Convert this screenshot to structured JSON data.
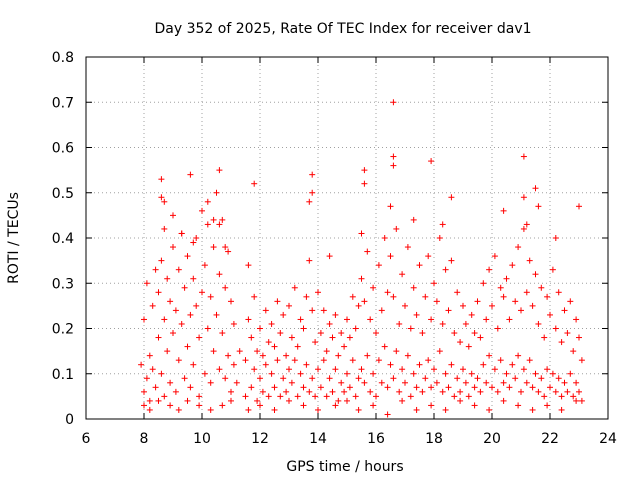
{
  "chart_data": {
    "type": "scatter",
    "title": "Day 352 of 2025, Rate Of TEC Index for receiver dav1",
    "xlabel": "GPS time / hours",
    "ylabel": "ROTI / TECUs",
    "xlim": [
      6,
      24
    ],
    "ylim": [
      0,
      0.8
    ],
    "xticks": [
      6,
      8,
      10,
      12,
      14,
      16,
      18,
      20,
      22,
      24
    ],
    "xtick_labels": [
      "6",
      "8",
      "10",
      "12",
      "14",
      "16",
      "18",
      "20",
      "22",
      "24"
    ],
    "yticks": [
      0,
      0.1,
      0.2,
      0.3,
      0.4,
      0.5,
      0.6,
      0.7,
      0.8
    ],
    "ytick_labels": [
      "0",
      "0.1",
      "0.2",
      "0.3",
      "0.4",
      "0.5",
      "0.6",
      "0.7",
      "0.8"
    ],
    "grid": true,
    "marker": "+",
    "series": [
      {
        "name": "dav1",
        "color": "#ff0000",
        "x": [
          7.9,
          8.0,
          8.0,
          8.1,
          8.1,
          8.2,
          8.2,
          8.3,
          8.3,
          8.4,
          8.4,
          8.5,
          8.5,
          8.6,
          8.6,
          8.7,
          8.7,
          8.7,
          8.8,
          8.8,
          8.9,
          8.9,
          9.0,
          9.0,
          9.1,
          9.1,
          9.2,
          9.2,
          9.3,
          9.3,
          9.4,
          9.4,
          9.5,
          9.5,
          9.6,
          9.6,
          9.7,
          9.7,
          9.8,
          9.8,
          9.9,
          9.9,
          10.0,
          10.0,
          10.1,
          10.1,
          10.2,
          10.2,
          10.3,
          10.3,
          10.4,
          10.4,
          10.5,
          10.5,
          10.6,
          10.6,
          10.7,
          10.7,
          10.8,
          10.8,
          10.9,
          10.9,
          11.0,
          11.0,
          11.1,
          11.1,
          11.2,
          11.3,
          11.5,
          11.5,
          11.6,
          11.6,
          11.7,
          11.7,
          11.8,
          11.8,
          11.9,
          11.9,
          12.0,
          12.0,
          12.1,
          12.1,
          12.2,
          12.2,
          12.3,
          12.3,
          12.4,
          12.4,
          12.5,
          12.5,
          12.6,
          12.6,
          12.7,
          12.7,
          12.8,
          12.8,
          12.9,
          12.9,
          13.0,
          13.0,
          13.1,
          13.1,
          13.2,
          13.2,
          13.3,
          13.3,
          13.4,
          13.4,
          13.5,
          13.5,
          13.6,
          13.6,
          13.7,
          13.7,
          13.8,
          13.8,
          13.9,
          13.9,
          14.0,
          14.0,
          14.1,
          14.1,
          14.2,
          14.2,
          14.3,
          14.3,
          14.4,
          14.4,
          14.5,
          14.5,
          14.6,
          14.6,
          14.7,
          14.7,
          14.8,
          14.8,
          14.9,
          14.9,
          15.0,
          15.0,
          15.1,
          15.1,
          15.2,
          15.2,
          15.3,
          15.3,
          15.4,
          15.4,
          15.5,
          15.5,
          15.6,
          15.6,
          15.7,
          15.7,
          15.8,
          15.8,
          15.9,
          15.9,
          16.0,
          16.0,
          16.1,
          16.1,
          16.2,
          16.2,
          16.3,
          16.3,
          16.4,
          16.4,
          16.5,
          16.5,
          16.6,
          16.6,
          16.7,
          16.7,
          16.8,
          16.8,
          16.9,
          16.9,
          17.0,
          17.0,
          17.1,
          17.1,
          17.2,
          17.2,
          17.3,
          17.3,
          17.4,
          17.4,
          17.5,
          17.5,
          17.6,
          17.6,
          17.7,
          17.7,
          17.8,
          17.8,
          17.9,
          17.9,
          18.0,
          18.0,
          18.1,
          18.1,
          18.2,
          18.2,
          18.3,
          18.3,
          18.4,
          18.4,
          18.5,
          18.5,
          18.6,
          18.6,
          18.7,
          18.7,
          18.8,
          18.8,
          18.9,
          18.9,
          19.0,
          19.0,
          19.1,
          19.1,
          19.2,
          19.2,
          19.3,
          19.3,
          19.4,
          19.4,
          19.5,
          19.5,
          19.6,
          19.6,
          19.7,
          19.7,
          19.8,
          19.8,
          19.9,
          19.9,
          20.0,
          20.0,
          20.1,
          20.1,
          20.2,
          20.2,
          20.3,
          20.3,
          20.4,
          20.4,
          20.5,
          20.5,
          20.6,
          20.6,
          20.7,
          20.7,
          20.8,
          20.8,
          20.9,
          20.9,
          21.0,
          21.0,
          21.1,
          21.1,
          21.2,
          21.2,
          21.3,
          21.3,
          21.4,
          21.4,
          21.5,
          21.5,
          21.6,
          21.6,
          21.7,
          21.7,
          21.8,
          21.8,
          21.9,
          21.9,
          22.0,
          22.0,
          22.1,
          22.1,
          22.2,
          22.2,
          22.3,
          22.3,
          22.4,
          22.4,
          22.5,
          22.5,
          22.6,
          22.6,
          22.7,
          22.7,
          22.8,
          22.8,
          22.9,
          22.9,
          23.0,
          23.0,
          23.1,
          23.1,
          8.6,
          8.6,
          9.3,
          9.6,
          10.2,
          10.6,
          10.6,
          11.8,
          13.8,
          13.8,
          15.6,
          15.6,
          16.6,
          16.6,
          16.6,
          17.9,
          21.1,
          21.1,
          21.5,
          23.0,
          8.7,
          9.0,
          9.7,
          10.4,
          10.8,
          13.7,
          14.4,
          15.5,
          16.5,
          17.3,
          18.3,
          18.6,
          20.4,
          21.2,
          21.6,
          22.2,
          8.0,
          8.2,
          8.5,
          8.9,
          9.2,
          9.5,
          9.9,
          10.3,
          10.7,
          11.0,
          11.6,
          12.0,
          12.5,
          13.0,
          13.5,
          14.0,
          14.6,
          15.0,
          15.4,
          15.9,
          16.4,
          16.9,
          17.4,
          17.9,
          18.4,
          18.9,
          19.4,
          19.9,
          20.4,
          20.9,
          21.4,
          21.9,
          22.4,
          22.9
        ],
        "y": [
          0.12,
          0.06,
          0.22,
          0.09,
          0.3,
          0.14,
          0.04,
          0.25,
          0.11,
          0.33,
          0.07,
          0.18,
          0.28,
          0.1,
          0.35,
          0.05,
          0.22,
          0.48,
          0.15,
          0.31,
          0.08,
          0.26,
          0.19,
          0.38,
          0.06,
          0.24,
          0.13,
          0.33,
          0.21,
          0.41,
          0.09,
          0.29,
          0.16,
          0.36,
          0.07,
          0.23,
          0.12,
          0.31,
          0.25,
          0.4,
          0.05,
          0.18,
          0.28,
          0.46,
          0.1,
          0.34,
          0.2,
          0.43,
          0.08,
          0.27,
          0.15,
          0.38,
          0.23,
          0.5,
          0.11,
          0.32,
          0.19,
          0.44,
          0.09,
          0.29,
          0.14,
          0.37,
          0.06,
          0.26,
          0.12,
          0.21,
          0.08,
          0.15,
          0.05,
          0.13,
          0.22,
          0.34,
          0.07,
          0.18,
          0.11,
          0.27,
          0.04,
          0.15,
          0.09,
          0.2,
          0.06,
          0.14,
          0.12,
          0.24,
          0.05,
          0.17,
          0.1,
          0.21,
          0.07,
          0.16,
          0.13,
          0.26,
          0.05,
          0.19,
          0.09,
          0.23,
          0.06,
          0.14,
          0.11,
          0.25,
          0.08,
          0.18,
          0.13,
          0.29,
          0.05,
          0.16,
          0.1,
          0.22,
          0.07,
          0.2,
          0.12,
          0.27,
          0.06,
          0.35,
          0.09,
          0.24,
          0.05,
          0.17,
          0.11,
          0.28,
          0.07,
          0.19,
          0.13,
          0.24,
          0.05,
          0.15,
          0.09,
          0.21,
          0.06,
          0.18,
          0.11,
          0.23,
          0.04,
          0.14,
          0.08,
          0.19,
          0.06,
          0.16,
          0.1,
          0.22,
          0.07,
          0.18,
          0.13,
          0.27,
          0.05,
          0.2,
          0.09,
          0.25,
          0.11,
          0.31,
          0.08,
          0.26,
          0.14,
          0.37,
          0.06,
          0.22,
          0.1,
          0.29,
          0.05,
          0.19,
          0.13,
          0.34,
          0.08,
          0.24,
          0.16,
          0.4,
          0.07,
          0.28,
          0.12,
          0.36,
          0.09,
          0.27,
          0.15,
          0.42,
          0.06,
          0.21,
          0.11,
          0.32,
          0.08,
          0.25,
          0.14,
          0.38,
          0.05,
          0.2,
          0.1,
          0.29,
          0.07,
          0.23,
          0.12,
          0.34,
          0.06,
          0.19,
          0.09,
          0.27,
          0.13,
          0.36,
          0.07,
          0.22,
          0.11,
          0.3,
          0.08,
          0.26,
          0.15,
          0.4,
          0.06,
          0.21,
          0.1,
          0.33,
          0.07,
          0.24,
          0.12,
          0.35,
          0.05,
          0.19,
          0.09,
          0.28,
          0.06,
          0.17,
          0.11,
          0.25,
          0.08,
          0.21,
          0.05,
          0.16,
          0.1,
          0.23,
          0.07,
          0.19,
          0.09,
          0.26,
          0.06,
          0.18,
          0.12,
          0.3,
          0.08,
          0.22,
          0.14,
          0.33,
          0.07,
          0.25,
          0.11,
          0.36,
          0.06,
          0.2,
          0.13,
          0.29,
          0.08,
          0.27,
          0.1,
          0.31,
          0.07,
          0.22,
          0.12,
          0.34,
          0.09,
          0.26,
          0.14,
          0.38,
          0.06,
          0.24,
          0.11,
          0.42,
          0.08,
          0.28,
          0.13,
          0.35,
          0.07,
          0.25,
          0.1,
          0.32,
          0.06,
          0.21,
          0.09,
          0.29,
          0.05,
          0.18,
          0.11,
          0.27,
          0.07,
          0.23,
          0.1,
          0.33,
          0.06,
          0.2,
          0.09,
          0.28,
          0.05,
          0.17,
          0.08,
          0.24,
          0.06,
          0.19,
          0.1,
          0.26,
          0.05,
          0.15,
          0.08,
          0.22,
          0.06,
          0.18,
          0.04,
          0.13,
          0.53,
          0.49,
          0.41,
          0.54,
          0.48,
          0.55,
          0.43,
          0.52,
          0.54,
          0.5,
          0.55,
          0.52,
          0.7,
          0.58,
          0.56,
          0.57,
          0.58,
          0.49,
          0.51,
          0.47,
          0.42,
          0.45,
          0.39,
          0.44,
          0.38,
          0.48,
          0.36,
          0.41,
          0.47,
          0.44,
          0.43,
          0.49,
          0.46,
          0.43,
          0.47,
          0.4,
          0.03,
          0.02,
          0.04,
          0.03,
          0.02,
          0.04,
          0.03,
          0.02,
          0.03,
          0.04,
          0.02,
          0.03,
          0.02,
          0.04,
          0.03,
          0.02,
          0.03,
          0.04,
          0.02,
          0.03,
          0.01,
          0.04,
          0.02,
          0.03,
          0.02,
          0.04,
          0.03,
          0.02,
          0.04,
          0.03,
          0.02,
          0.03,
          0.02,
          0.04
        ]
      }
    ]
  }
}
